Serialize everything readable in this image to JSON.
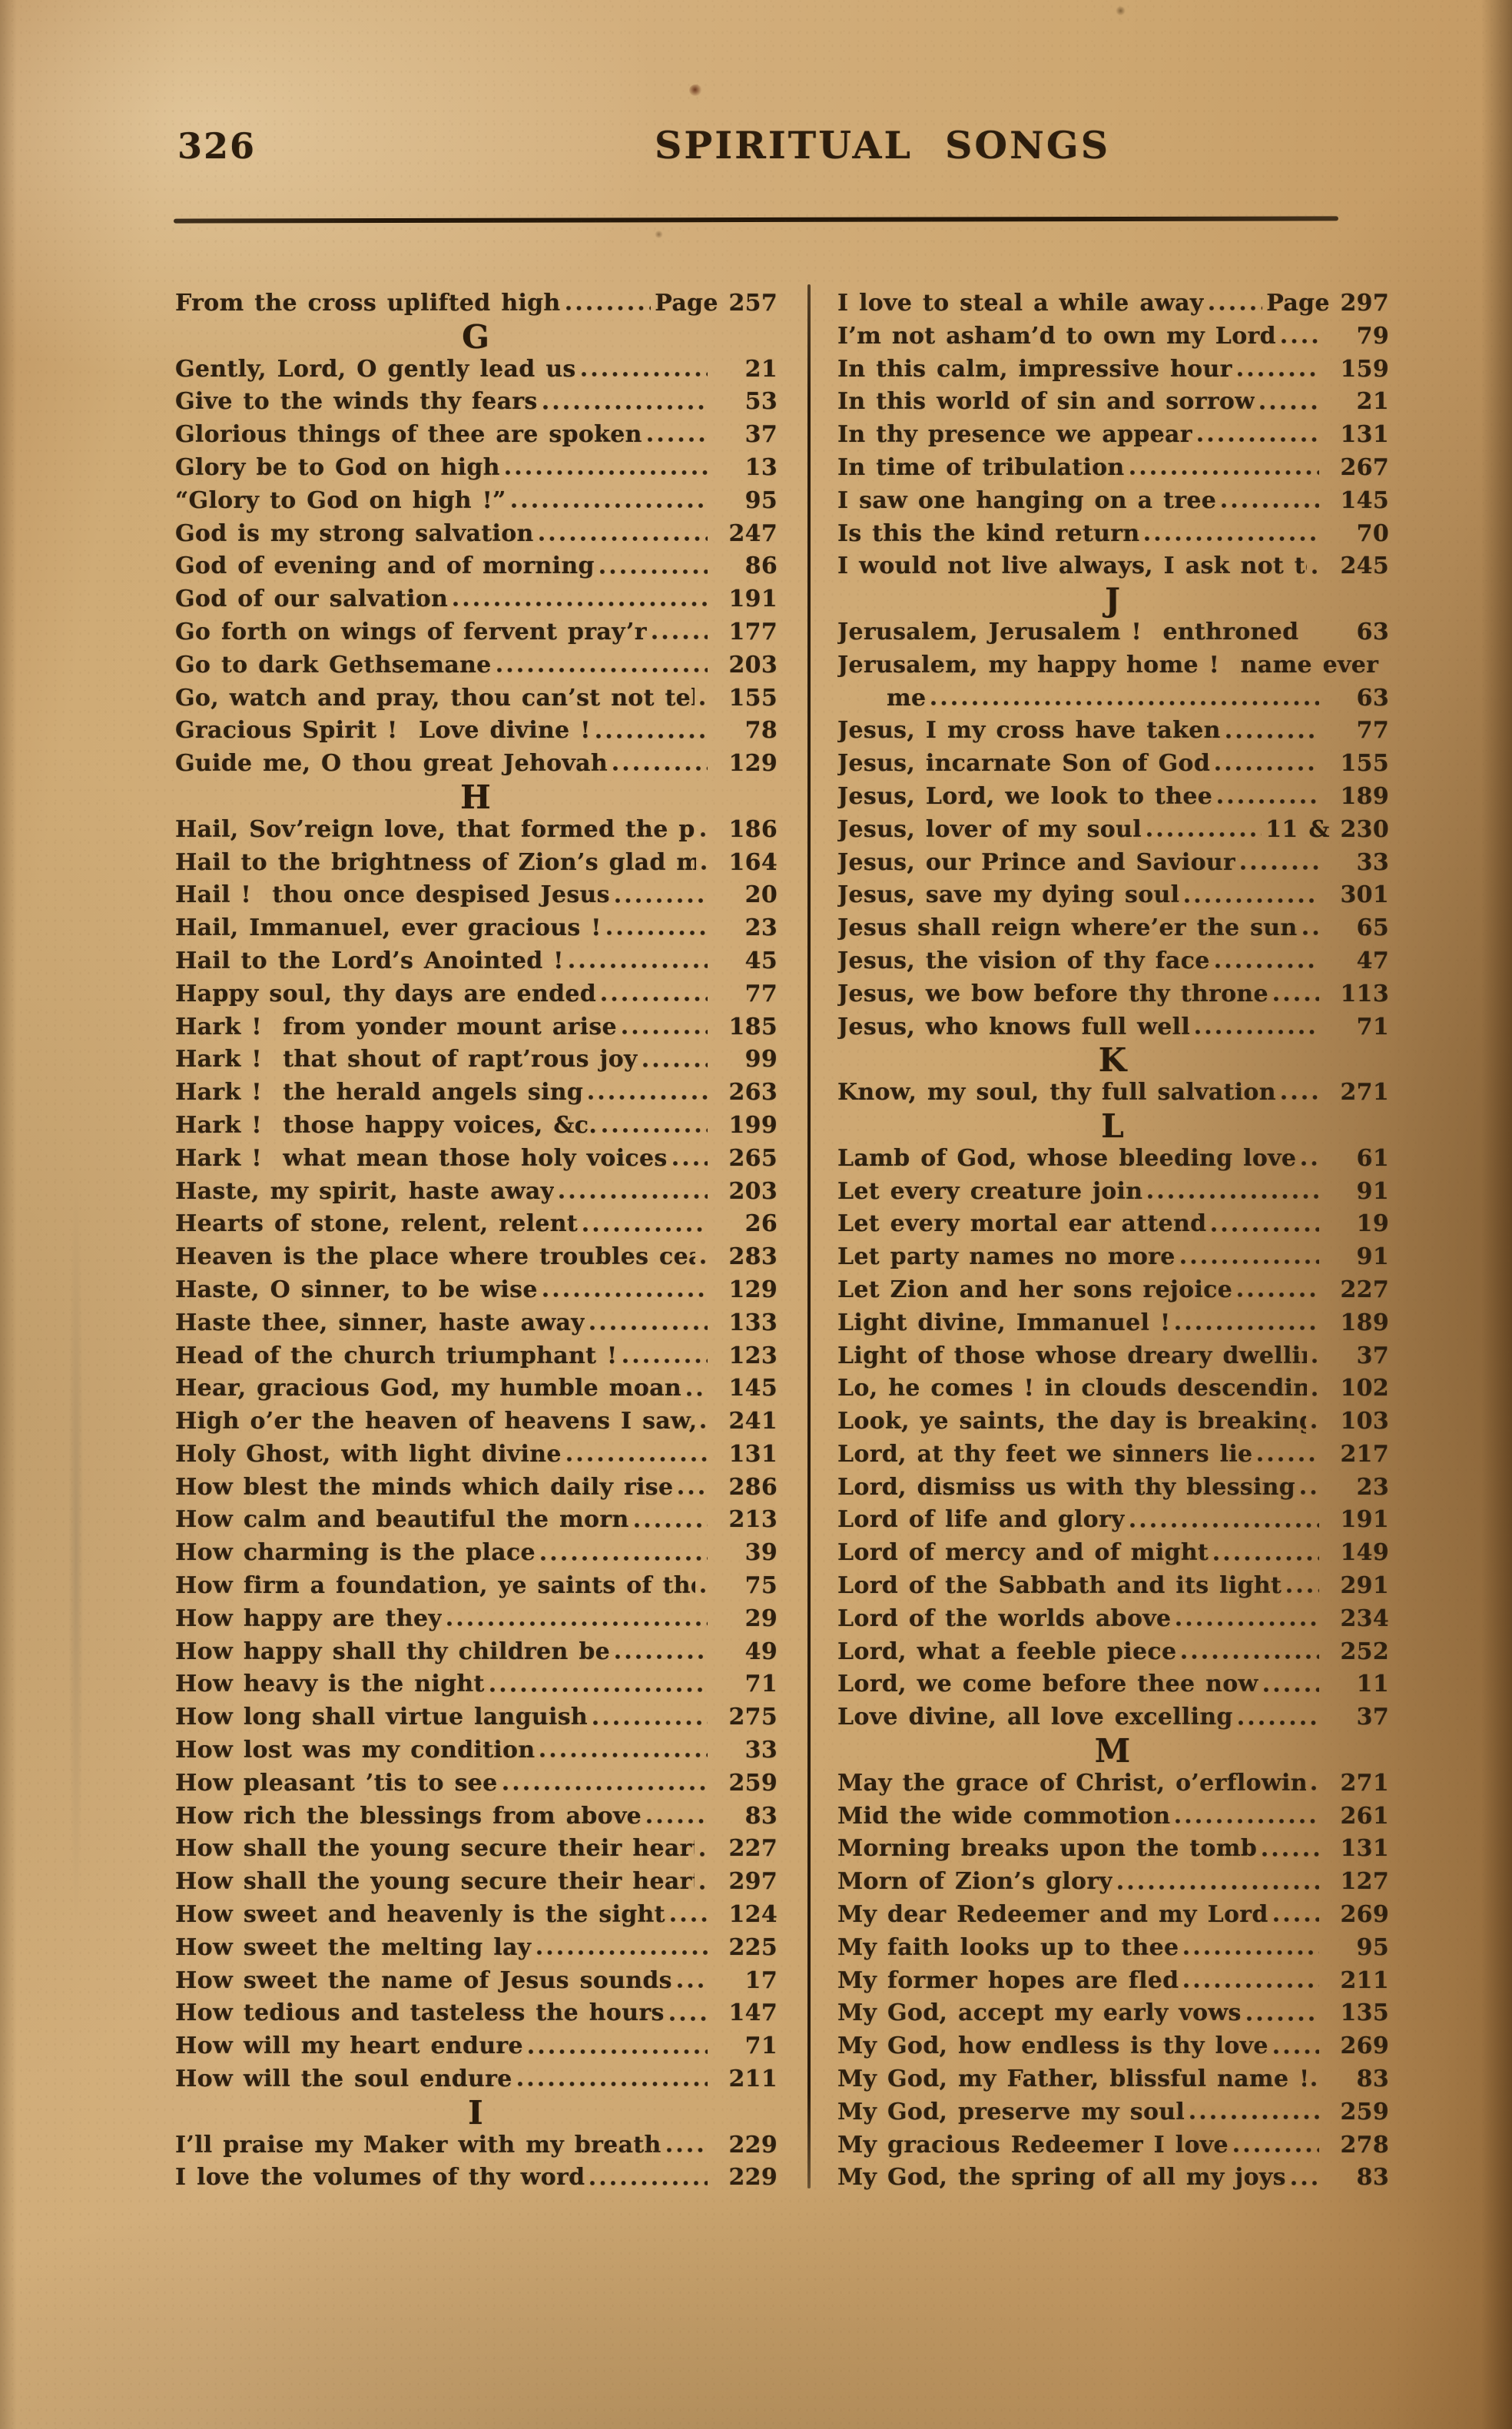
{
  "page": {
    "folio": "326",
    "running_title": "SPIRITUAL SONGS"
  },
  "ink_color": "#2e1f0e",
  "paper_color": "#cda771",
  "index": {
    "columns": [
      {
        "items": [
          {
            "title": "From the cross uplifted high",
            "page": "Page 257"
          },
          {
            "section": "G"
          },
          {
            "title": "Gently, Lord, O gently lead us",
            "page": "21"
          },
          {
            "title": "Give to the winds thy fears",
            "page": "53"
          },
          {
            "title": "Glorious things of thee are spoken",
            "page": "37"
          },
          {
            "title": "Glory be to God on high",
            "page": "13"
          },
          {
            "title": "“Glory to God on high !”",
            "page": "95"
          },
          {
            "title": "God is my strong salvation",
            "page": "247"
          },
          {
            "title": "God of evening and of morning",
            "page": "86"
          },
          {
            "title": "God of our salvation",
            "page": "191"
          },
          {
            "title": "Go forth on wings of fervent pray’r",
            "page": "177"
          },
          {
            "title": "Go to dark Gethsemane",
            "page": "203"
          },
          {
            "title": "Go, watch and pray, thou can’st not tell",
            "page": "155"
          },
          {
            "title": "Gracious Spirit !  Love divine !",
            "page": "78"
          },
          {
            "title": "Guide me, O thou great Jehovah",
            "page": "129"
          },
          {
            "section": "H"
          },
          {
            "title": "Hail, Sov’reign love, that formed the plan",
            "page": "186"
          },
          {
            "title": "Hail to the brightness of Zion’s glad morning !",
            "page": "164"
          },
          {
            "title": "Hail !  thou once despised Jesus",
            "page": "20"
          },
          {
            "title": "Hail, Immanuel, ever gracious !",
            "page": "23"
          },
          {
            "title": "Hail to the Lord’s Anointed !",
            "page": "45"
          },
          {
            "title": "Happy soul, thy days are ended",
            "page": "77"
          },
          {
            "title": "Hark !  from yonder mount arise",
            "page": "185"
          },
          {
            "title": "Hark !  that shout of rapt’rous joy",
            "page": "99"
          },
          {
            "title": "Hark !  the herald angels sing",
            "page": "263"
          },
          {
            "title": "Hark !  those happy voices, &c.",
            "page": "199"
          },
          {
            "title": "Hark !  what mean those holy voices",
            "page": "265"
          },
          {
            "title": "Haste, my spirit, haste away",
            "page": "203"
          },
          {
            "title": "Hearts of stone, relent, relent",
            "page": "26"
          },
          {
            "title": "Heaven is the place where troubles cease",
            "page": "283"
          },
          {
            "title": "Haste, O sinner, to be wise",
            "page": "129"
          },
          {
            "title": "Haste thee, sinner, haste away",
            "page": "133"
          },
          {
            "title": "Head of the church triumphant !",
            "page": "123"
          },
          {
            "title": "Hear, gracious God, my humble moan",
            "page": "145"
          },
          {
            "title": "High o’er the heaven of heavens I saw, &c.",
            "page": "241"
          },
          {
            "title": "Holy Ghost, with light divine",
            "page": "131"
          },
          {
            "title": "How blest the minds which daily rise",
            "page": "286"
          },
          {
            "title": "How calm and beautiful the morn",
            "page": "213"
          },
          {
            "title": "How charming is the place",
            "page": "39"
          },
          {
            "title": "How firm a foundation, ye saints of the Lord",
            "page": "75"
          },
          {
            "title": "How happy are they",
            "page": "29"
          },
          {
            "title": "How happy shall thy children be",
            "page": "49"
          },
          {
            "title": "How heavy is the night",
            "page": "71"
          },
          {
            "title": "How long shall virtue languish",
            "page": "275"
          },
          {
            "title": "How lost was my condition",
            "page": "33"
          },
          {
            "title": "How pleasant ’tis to see",
            "page": "259"
          },
          {
            "title": "How rich the blessings from above",
            "page": "83"
          },
          {
            "title": "How shall the young secure their hearts",
            "page": "227"
          },
          {
            "title": "How shall the young secure their hearts",
            "page": "297"
          },
          {
            "title": "How sweet and heavenly is the sight",
            "page": "124"
          },
          {
            "title": "How sweet the melting lay",
            "page": "225"
          },
          {
            "title": "How sweet the name of Jesus sounds",
            "page": "17"
          },
          {
            "title": "How tedious and tasteless the hours",
            "page": "147"
          },
          {
            "title": "How will my heart endure",
            "page": "71"
          },
          {
            "title": "How will the soul endure",
            "page": "211"
          },
          {
            "section": "I"
          },
          {
            "title": "I’ll praise my Maker with my breath",
            "page": "229"
          },
          {
            "title": "I love the volumes of thy word",
            "page": "229"
          }
        ]
      },
      {
        "items": [
          {
            "title": "I love to steal a while away",
            "page": "Page 297"
          },
          {
            "title": "I’m not asham’d to own my Lord",
            "page": "79"
          },
          {
            "title": "In this calm, impressive hour",
            "page": "159"
          },
          {
            "title": "In this world of sin and sorrow",
            "page": "21"
          },
          {
            "title": "In thy presence we appear",
            "page": "131"
          },
          {
            "title": "In time of tribulation",
            "page": "267"
          },
          {
            "title": "I saw one hanging on a tree",
            "page": "145"
          },
          {
            "title": "Is this the kind return",
            "page": "70"
          },
          {
            "title": "I would not live always, I ask not to stay",
            "page": "245"
          },
          {
            "section": "J"
          },
          {
            "title": "Jerusalem, Jerusalem !  enthroned once on high,",
            "page": "63",
            "dots": false
          },
          {
            "title": "Jerusalem, my happy home !  name ever dear to",
            "runover": true
          },
          {
            "title": "me",
            "page": "63",
            "indent": true
          },
          {
            "title": "Jesus, I my cross have taken",
            "page": "77"
          },
          {
            "title": "Jesus, incarnate Son of God",
            "page": "155"
          },
          {
            "title": "Jesus, Lord, we look to thee",
            "page": "189"
          },
          {
            "title": "Jesus, lover of my soul",
            "page": "11 & 230"
          },
          {
            "title": "Jesus, our Prince and Saviour",
            "page": "33"
          },
          {
            "title": "Jesus, save my dying soul",
            "page": "301"
          },
          {
            "title": "Jesus shall reign where’er the sun",
            "page": "65"
          },
          {
            "title": "Jesus, the vision of thy face",
            "page": "47"
          },
          {
            "title": "Jesus, we bow before thy throne",
            "page": "113"
          },
          {
            "title": "Jesus, who knows full well",
            "page": "71"
          },
          {
            "section": "K"
          },
          {
            "title": "Know, my soul, thy full salvation",
            "page": "271"
          },
          {
            "section": "L"
          },
          {
            "title": "Lamb of God, whose bleeding love",
            "page": "61"
          },
          {
            "title": "Let every creature join",
            "page": "91"
          },
          {
            "title": "Let every mortal ear attend",
            "page": "19"
          },
          {
            "title": "Let party names no more",
            "page": "91"
          },
          {
            "title": "Let Zion and her sons rejoice",
            "page": "227"
          },
          {
            "title": "Light divine, Immanuel !",
            "page": "189"
          },
          {
            "title": "Light of those whose dreary dwelling",
            "page": "37"
          },
          {
            "title": "Lo, he comes ! in clouds descending,",
            "page": "102"
          },
          {
            "title": "Look, ye saints, the day is breaking",
            "page": "103"
          },
          {
            "title": "Lord, at thy feet we sinners lie",
            "page": "217"
          },
          {
            "title": "Lord, dismiss us with thy blessing",
            "page": "23"
          },
          {
            "title": "Lord of life and glory",
            "page": "191"
          },
          {
            "title": "Lord of mercy and of might",
            "page": "149"
          },
          {
            "title": "Lord of the Sabbath and its light",
            "page": "291"
          },
          {
            "title": "Lord of the worlds above",
            "page": "234"
          },
          {
            "title": "Lord, what a feeble piece",
            "page": "252"
          },
          {
            "title": "Lord, we come before thee now",
            "page": "11"
          },
          {
            "title": "Love divine, all love excelling",
            "page": "37"
          },
          {
            "section": "M"
          },
          {
            "title": "May the grace of Christ, o’erflowing",
            "page": "271"
          },
          {
            "title": "Mid the wide commotion",
            "page": "261"
          },
          {
            "title": "Morning breaks upon the tomb",
            "page": "131"
          },
          {
            "title": "Morn of Zion’s glory",
            "page": "127"
          },
          {
            "title": "My dear Redeemer and my Lord",
            "page": "269"
          },
          {
            "title": "My faith looks up to thee",
            "page": "95"
          },
          {
            "title": "My former hopes are fled",
            "page": "211"
          },
          {
            "title": "My God, accept my early vows",
            "page": "135"
          },
          {
            "title": "My God, how endless is thy love",
            "page": "269"
          },
          {
            "title": "My God, my Father, blissful name !",
            "page": "83"
          },
          {
            "title": "My God, preserve my soul",
            "page": "259"
          },
          {
            "title": "My gracious Redeemer I love",
            "page": "278"
          },
          {
            "title": "My God, the spring of all my joys",
            "page": "83"
          }
        ]
      }
    ]
  }
}
